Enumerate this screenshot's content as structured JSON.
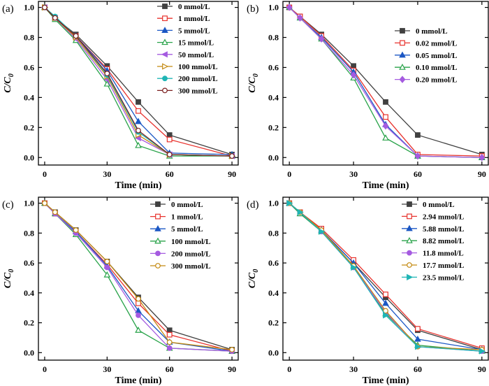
{
  "chart_data": [
    {
      "type": "line",
      "panel_label": "(a)",
      "xlabel": "Time (min)",
      "ylabel": "C/C0",
      "xlim": [
        -3,
        93
      ],
      "ylim": [
        -0.05,
        1.04
      ],
      "xticks": [
        0,
        30,
        60,
        90
      ],
      "yticks": [
        0.0,
        0.2,
        0.4,
        0.6,
        0.8,
        1.0
      ],
      "x": [
        0,
        5,
        15,
        30,
        45,
        60,
        90
      ],
      "legend_position": "top-right",
      "series": [
        {
          "name": "0 mmol/L",
          "color": "#404040",
          "marker": "square-filled",
          "values": [
            1.0,
            0.93,
            0.82,
            0.61,
            0.37,
            0.15,
            0.02
          ]
        },
        {
          "name": "1 mmol/L",
          "color": "#e8322d",
          "marker": "square-open",
          "values": [
            1.0,
            0.93,
            0.81,
            0.59,
            0.31,
            0.12,
            0.01
          ]
        },
        {
          "name": "5 mmol/L",
          "color": "#1b57c4",
          "marker": "triangle-filled",
          "values": [
            1.0,
            0.93,
            0.81,
            0.58,
            0.24,
            0.03,
            0.02
          ]
        },
        {
          "name": "15 mmol/L",
          "color": "#29a34a",
          "marker": "triangle-open",
          "values": [
            1.0,
            0.92,
            0.78,
            0.49,
            0.08,
            0.01,
            0.01
          ]
        },
        {
          "name": "50 mmol/L",
          "color": "#a55be0",
          "marker": "triangle-left-filled",
          "values": [
            1.0,
            0.93,
            0.79,
            0.52,
            0.13,
            0.02,
            0.01
          ]
        },
        {
          "name": "100 mmol/L",
          "color": "#c48a12",
          "marker": "triangle-right-open",
          "values": [
            1.0,
            0.93,
            0.8,
            0.54,
            0.15,
            0.02,
            0.01
          ]
        },
        {
          "name": "200 mmol/L",
          "color": "#1fb5b5",
          "marker": "circle-filled",
          "values": [
            1.0,
            0.94,
            0.81,
            0.55,
            0.17,
            0.02,
            0.01
          ]
        },
        {
          "name": "300 mmol/L",
          "color": "#7a1f1f",
          "marker": "circle-open",
          "values": [
            1.0,
            0.93,
            0.81,
            0.56,
            0.18,
            0.02,
            0.01
          ]
        }
      ]
    },
    {
      "type": "line",
      "panel_label": "(b)",
      "xlabel": "Time (min)",
      "ylabel": "C/C0",
      "xlim": [
        -3,
        93
      ],
      "ylim": [
        -0.05,
        1.04
      ],
      "xticks": [
        0,
        30,
        60,
        90
      ],
      "yticks": [
        0.0,
        0.2,
        0.4,
        0.6,
        0.8,
        1.0
      ],
      "x": [
        0,
        5,
        15,
        30,
        45,
        60,
        90
      ],
      "legend_position": "top-right",
      "series": [
        {
          "name": "0 mmol/L",
          "color": "#404040",
          "marker": "square-filled",
          "values": [
            1.0,
            0.94,
            0.82,
            0.61,
            0.37,
            0.15,
            0.02
          ]
        },
        {
          "name": "0.02 mmol/L",
          "color": "#e8322d",
          "marker": "square-open",
          "values": [
            1.0,
            0.94,
            0.81,
            0.58,
            0.27,
            0.02,
            0.01
          ]
        },
        {
          "name": "0.05 mmol/L",
          "color": "#1b57c4",
          "marker": "triangle-filled",
          "values": [
            1.0,
            0.93,
            0.8,
            0.57,
            0.22,
            0.01,
            0.0
          ]
        },
        {
          "name": "0.10 mmol/L",
          "color": "#29a34a",
          "marker": "triangle-open",
          "values": [
            1.0,
            0.93,
            0.79,
            0.53,
            0.13,
            0.01,
            0.0
          ]
        },
        {
          "name": "0.20 mmol/L",
          "color": "#a55be0",
          "marker": "diamond-filled",
          "values": [
            1.0,
            0.93,
            0.79,
            0.55,
            0.21,
            0.01,
            0.0
          ]
        }
      ]
    },
    {
      "type": "line",
      "panel_label": "(c)",
      "xlabel": "Time (min)",
      "ylabel": "C/C0",
      "xlim": [
        -3,
        93
      ],
      "ylim": [
        -0.05,
        1.04
      ],
      "xticks": [
        0,
        30,
        60,
        90
      ],
      "yticks": [
        0.0,
        0.2,
        0.4,
        0.6,
        0.8,
        1.0
      ],
      "x": [
        0,
        5,
        15,
        30,
        45,
        60,
        90
      ],
      "legend_position": "top-right",
      "series": [
        {
          "name": "0 mmol/L",
          "color": "#404040",
          "marker": "square-filled",
          "values": [
            1.0,
            0.94,
            0.82,
            0.61,
            0.37,
            0.15,
            0.02
          ]
        },
        {
          "name": "1 mmol/L",
          "color": "#e8322d",
          "marker": "square-open",
          "values": [
            1.0,
            0.93,
            0.81,
            0.59,
            0.33,
            0.12,
            0.01
          ]
        },
        {
          "name": "5 mmol/L",
          "color": "#1b57c4",
          "marker": "triangle-filled",
          "values": [
            1.0,
            0.93,
            0.81,
            0.58,
            0.28,
            0.07,
            0.01
          ]
        },
        {
          "name": "100 mmol/L",
          "color": "#29a34a",
          "marker": "triangle-open",
          "values": [
            1.0,
            0.93,
            0.79,
            0.52,
            0.15,
            0.03,
            0.01
          ]
        },
        {
          "name": "200 mmol/L",
          "color": "#a55be0",
          "marker": "circle-filled",
          "values": [
            1.0,
            0.93,
            0.8,
            0.57,
            0.25,
            0.03,
            0.01
          ]
        },
        {
          "name": "300 mmol/L",
          "color": "#c48a12",
          "marker": "circle-open",
          "values": [
            1.0,
            0.94,
            0.82,
            0.61,
            0.36,
            0.07,
            0.02
          ]
        }
      ]
    },
    {
      "type": "line",
      "panel_label": "(d)",
      "xlabel": "Time (min)",
      "ylabel": "C/C0",
      "xlim": [
        -3,
        93
      ],
      "ylim": [
        -0.05,
        1.04
      ],
      "xticks": [
        0,
        30,
        60,
        90
      ],
      "yticks": [
        0.0,
        0.2,
        0.4,
        0.6,
        0.8,
        1.0
      ],
      "x": [
        0,
        5,
        15,
        30,
        45,
        60,
        90
      ],
      "legend_position": "top-right",
      "series": [
        {
          "name": "0 mmol/L",
          "color": "#404040",
          "marker": "square-filled",
          "values": [
            1.0,
            0.94,
            0.82,
            0.6,
            0.37,
            0.15,
            0.02
          ]
        },
        {
          "name": "2.94 mmol/L",
          "color": "#e8322d",
          "marker": "square-open",
          "values": [
            1.0,
            0.94,
            0.83,
            0.62,
            0.39,
            0.16,
            0.03
          ]
        },
        {
          "name": "5.88 mmol/L",
          "color": "#1b57c4",
          "marker": "triangle-filled",
          "values": [
            1.0,
            0.93,
            0.82,
            0.6,
            0.33,
            0.09,
            0.02
          ]
        },
        {
          "name": "8.82 mmol/L",
          "color": "#29a34a",
          "marker": "triangle-open",
          "values": [
            1.0,
            0.93,
            0.81,
            0.58,
            0.26,
            0.05,
            0.01
          ]
        },
        {
          "name": "11.8 mmol/L",
          "color": "#a55be0",
          "marker": "circle-filled",
          "values": [
            1.0,
            0.94,
            0.81,
            0.57,
            0.27,
            0.04,
            0.01
          ]
        },
        {
          "name": "17.7 mmol/L",
          "color": "#c48a12",
          "marker": "circle-open",
          "values": [
            1.0,
            0.94,
            0.82,
            0.58,
            0.28,
            0.04,
            0.02
          ]
        },
        {
          "name": "23.5 mmol/L",
          "color": "#1fb5b5",
          "marker": "triangle-right-filled",
          "values": [
            1.0,
            0.94,
            0.81,
            0.57,
            0.25,
            0.04,
            0.01
          ]
        }
      ]
    }
  ]
}
